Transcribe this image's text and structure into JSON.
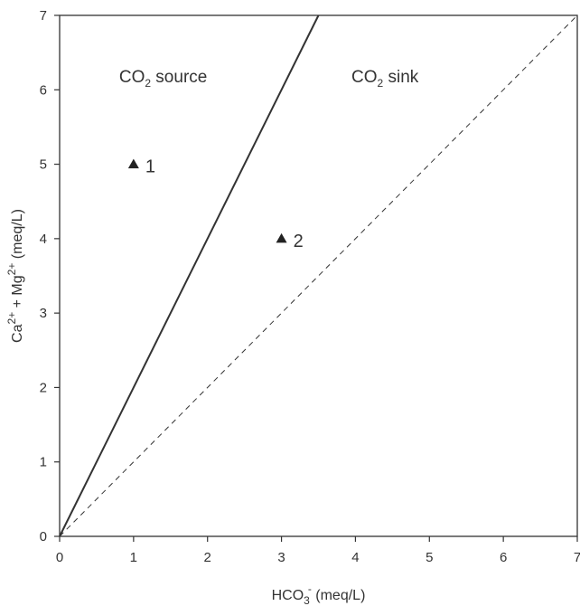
{
  "chart_data": {
    "type": "scatter",
    "xlabel": {
      "base": "HCO",
      "sub": "3",
      "sup": "-",
      "tail": " (meq/L)"
    },
    "ylabel": {
      "part1": "Ca",
      "sup1": "2+",
      "part2": " + Mg",
      "sup2": "2+",
      "tail": " (meq/L)"
    },
    "xlim": [
      0,
      7
    ],
    "ylim": [
      0,
      7
    ],
    "xticks": [
      0,
      1,
      2,
      3,
      4,
      5,
      6,
      7
    ],
    "yticks": [
      0,
      1,
      2,
      3,
      4,
      5,
      6,
      7
    ],
    "grid": false,
    "colors": {
      "axis": "#333333",
      "marker": "#222222"
    },
    "points": [
      {
        "x": 1,
        "y": 5,
        "label": "1",
        "marker": "triangle"
      },
      {
        "x": 3,
        "y": 4,
        "label": "2",
        "marker": "triangle"
      }
    ],
    "lines": [
      {
        "style": "solid",
        "from": [
          0,
          0
        ],
        "to": [
          3.5,
          7
        ]
      },
      {
        "style": "dashed",
        "from": [
          0,
          0
        ],
        "to": [
          7,
          7
        ]
      }
    ],
    "annotations": [
      {
        "pre": "CO",
        "sub": "2",
        "post": " source",
        "x": 1.4,
        "y": 6.1
      },
      {
        "pre": "CO",
        "sub": "2",
        "post": " sink",
        "x": 4.4,
        "y": 6.1
      }
    ]
  }
}
